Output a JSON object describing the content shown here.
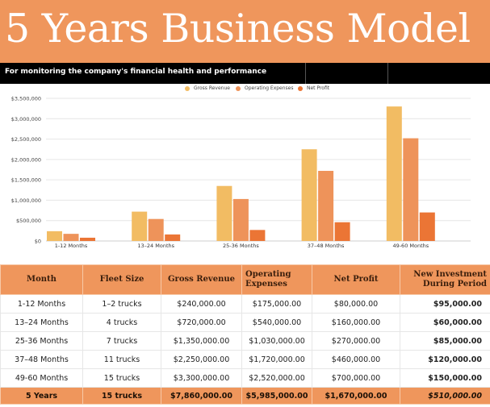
{
  "header": {
    "title": "5 Years Business Model",
    "subtitle": "For monitoring the company's financial health and performance"
  },
  "colors": {
    "accent": "#EF965C",
    "gross_revenue": "#F2BC63",
    "operating_expenses": "#EE935A",
    "net_profit": "#EB7535"
  },
  "chart_data": {
    "type": "bar",
    "title": "",
    "xlabel": "",
    "ylabel": "",
    "categories": [
      "1-12 Months",
      "13–24 Months",
      "25-36 Months",
      "37–48 Months",
      "49-60 Months"
    ],
    "series": [
      {
        "name": "Gross Revenue",
        "values": [
          240000,
          720000,
          1350000,
          2250000,
          3300000
        ]
      },
      {
        "name": "Operating Expenses",
        "values": [
          175000,
          540000,
          1030000,
          1720000,
          2520000
        ]
      },
      {
        "name": "Net Profit",
        "values": [
          80000,
          160000,
          270000,
          460000,
          700000
        ]
      }
    ],
    "ylim": [
      0,
      3500000
    ],
    "yticks": [
      0,
      500000,
      1000000,
      1500000,
      2000000,
      2500000,
      3000000,
      3500000
    ],
    "ytick_labels": [
      "$0",
      "$500,000",
      "$1,000,000",
      "$1,500,000",
      "$2,000,000",
      "$2,500,000",
      "$3,000,000",
      "$3,500,000"
    ],
    "grid": true,
    "legend_position": "top-center"
  },
  "table": {
    "headers": [
      "Month",
      "Fleet Size",
      "Gross Revenue",
      "Operating Expenses",
      "Net Profit",
      "New Investment During Period"
    ],
    "rows": [
      [
        "1-12 Months",
        "1–2 trucks",
        "$240,000.00",
        "$175,000.00",
        "$80,000.00",
        "$95,000.00"
      ],
      [
        "13–24 Months",
        "4 trucks",
        "$720,000.00",
        "$540,000.00",
        "$160,000.00",
        "$60,000.00"
      ],
      [
        "25-36 Months",
        "7 trucks",
        "$1,350,000.00",
        "$1,030,000.00",
        "$270,000.00",
        "$85,000.00"
      ],
      [
        "37–48 Months",
        "11 trucks",
        "$2,250,000.00",
        "$1,720,000.00",
        "$460,000.00",
        "$120,000.00"
      ],
      [
        "49-60 Months",
        "15 trucks",
        "$3,300,000.00",
        "$2,520,000.00",
        "$700,000.00",
        "$150,000.00"
      ]
    ],
    "total": [
      "5 Years",
      "15 trucks",
      "$7,860,000.00",
      "$5,985,000.00",
      "$1,670,000.00",
      "$510,000.00"
    ]
  }
}
